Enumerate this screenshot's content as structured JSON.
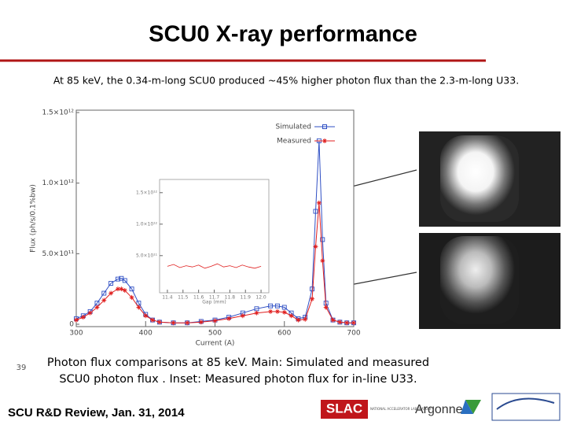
{
  "header": {
    "title": "SCU0 X-ray performance",
    "subtitle": "At 85 keV, the 0.34-m-long SCU0 produced ~45% higher photon flux than the 2.3-m-long U33."
  },
  "caption": [
    "Photon flux comparisons at 85 keV.  Main: Simulated and measured",
    "SCU0 photon flux . Inset: Measured photon flux for in-line U33."
  ],
  "footer": {
    "page_number": "39",
    "text": "SCU R&D Review,  Jan. 31, 2014",
    "logos": [
      "SLAC",
      "NATIONAL ACCELERATOR LABORATORY",
      "Argonne"
    ]
  },
  "chart_data": [
    {
      "type": "line",
      "xlabel": "Current (A)",
      "ylabel": "Flux (ph/s/0.1%bw)",
      "x": [
        300,
        310,
        320,
        330,
        340,
        350,
        360,
        365,
        370,
        380,
        390,
        400,
        410,
        420,
        440,
        460,
        480,
        500,
        520,
        540,
        560,
        580,
        590,
        600,
        610,
        620,
        630,
        640,
        645,
        650,
        655,
        660,
        670,
        680,
        690,
        700
      ],
      "series": [
        {
          "name": "Simulated",
          "color": "#2f4fc4",
          "marker": "square",
          "values": [
            40000000000.0,
            60000000000.0,
            90000000000.0,
            150000000000.0,
            220000000000.0,
            290000000000.0,
            320000000000.0,
            325000000000.0,
            310000000000.0,
            250000000000.0,
            150000000000.0,
            70000000000.0,
            30000000000.0,
            15000000000.0,
            10000000000.0,
            10000000000.0,
            20000000000.0,
            30000000000.0,
            50000000000.0,
            80000000000.0,
            110000000000.0,
            130000000000.0,
            130000000000.0,
            120000000000.0,
            80000000000.0,
            40000000000.0,
            50000000000.0,
            250000000000.0,
            800000000000.0,
            1300000000000.0,
            600000000000.0,
            150000000000.0,
            30000000000.0,
            15000000000.0,
            10000000000.0,
            10000000000.0
          ]
        },
        {
          "name": "Measured",
          "color": "#e01f1f",
          "marker": "star",
          "values": [
            30000000000.0,
            50000000000.0,
            80000000000.0,
            120000000000.0,
            170000000000.0,
            220000000000.0,
            250000000000.0,
            250000000000.0,
            240000000000.0,
            190000000000.0,
            120000000000.0,
            60000000000.0,
            30000000000.0,
            15000000000.0,
            10000000000.0,
            10000000000.0,
            15000000000.0,
            25000000000.0,
            40000000000.0,
            60000000000.0,
            80000000000.0,
            90000000000.0,
            90000000000.0,
            85000000000.0,
            60000000000.0,
            30000000000.0,
            35000000000.0,
            180000000000.0,
            550000000000.0,
            860000000000.0,
            450000000000.0,
            120000000000.0,
            30000000000.0,
            15000000000.0,
            10000000000.0,
            10000000000.0
          ]
        }
      ],
      "xlim": [
        300,
        700
      ],
      "xticks": [
        300,
        400,
        500,
        600,
        700
      ],
      "ylim": [
        0,
        1500000000000.0
      ],
      "yticks": [
        0,
        {
          "value": 500000000000.0,
          "label": "5.0×10¹¹"
        },
        {
          "value": 1000000000000.0,
          "label": "1.0×10¹²"
        },
        {
          "value": 1500000000000.0,
          "label": "1.5×10¹²"
        }
      ],
      "legend": "upper right"
    },
    {
      "type": "line",
      "xlabel": "Gap (mm)",
      "x": [
        11.4,
        11.44,
        11.48,
        11.52,
        11.56,
        11.6,
        11.64,
        11.68,
        11.72,
        11.76,
        11.8,
        11.84,
        11.88,
        11.92,
        11.96,
        12.0
      ],
      "series": [
        {
          "color": "#e01f1f",
          "values": [
            330000000000.0,
            360000000000.0,
            310000000000.0,
            340000000000.0,
            320000000000.0,
            350000000000.0,
            300000000000.0,
            330000000000.0,
            370000000000.0,
            320000000000.0,
            340000000000.0,
            310000000000.0,
            350000000000.0,
            320000000000.0,
            300000000000.0,
            330000000000.0
          ]
        }
      ],
      "xlim": [
        11.35,
        12.05
      ],
      "xticks": [
        11.4,
        11.5,
        11.6,
        11.7,
        11.8,
        11.9,
        {
          "value": 12,
          "label": "12.0"
        }
      ],
      "ylim": [
        -90000000000.0,
        1710000000000.0
      ],
      "yticks": [
        {
          "value": 500000000000.0,
          "label": "5.0×10¹¹"
        },
        {
          "value": 1000000000000.0,
          "label": "1.0×10¹²"
        },
        {
          "value": 1500000000000.0,
          "label": "1.5×10¹²"
        }
      ]
    }
  ]
}
